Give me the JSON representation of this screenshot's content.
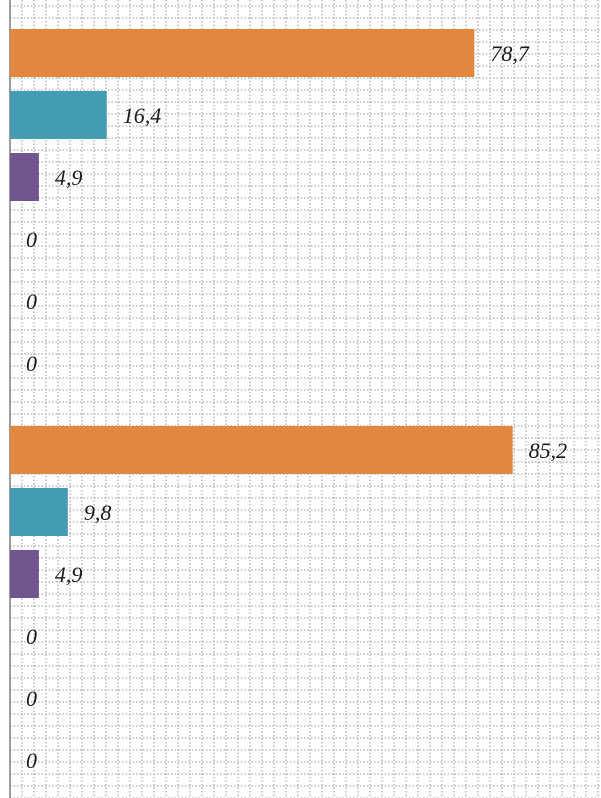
{
  "chart_data": {
    "type": "bar",
    "orientation": "horizontal",
    "title": "",
    "xlabel": "",
    "ylabel": "",
    "xlim": [
      0,
      100
    ],
    "grid": true,
    "grid_style": "dotted",
    "legend": "none",
    "colors": [
      "#E0883E",
      "#449CB2",
      "#71558F",
      "#E0883E",
      "#449CB2",
      "#71558F"
    ],
    "groups": [
      {
        "bars": [
          {
            "value": 78.7,
            "label": "78,7",
            "color": "#E0883E"
          },
          {
            "value": 16.4,
            "label": "16,4",
            "color": "#449CB2"
          },
          {
            "value": 4.9,
            "label": "4,9",
            "color": "#71558F"
          },
          {
            "value": 0,
            "label": "0",
            "color": "#E0883E"
          },
          {
            "value": 0,
            "label": "0",
            "color": "#449CB2"
          },
          {
            "value": 0,
            "label": "0",
            "color": "#71558F"
          }
        ]
      },
      {
        "bars": [
          {
            "value": 85.2,
            "label": "85,2",
            "color": "#E0883E"
          },
          {
            "value": 9.8,
            "label": "9,8",
            "color": "#449CB2"
          },
          {
            "value": 4.9,
            "label": "4,9",
            "color": "#71558F"
          },
          {
            "value": 0,
            "label": "0",
            "color": "#E0883E"
          },
          {
            "value": 0,
            "label": "0",
            "color": "#449CB2"
          },
          {
            "value": 0,
            "label": "0",
            "color": "#71558F"
          }
        ]
      }
    ]
  }
}
